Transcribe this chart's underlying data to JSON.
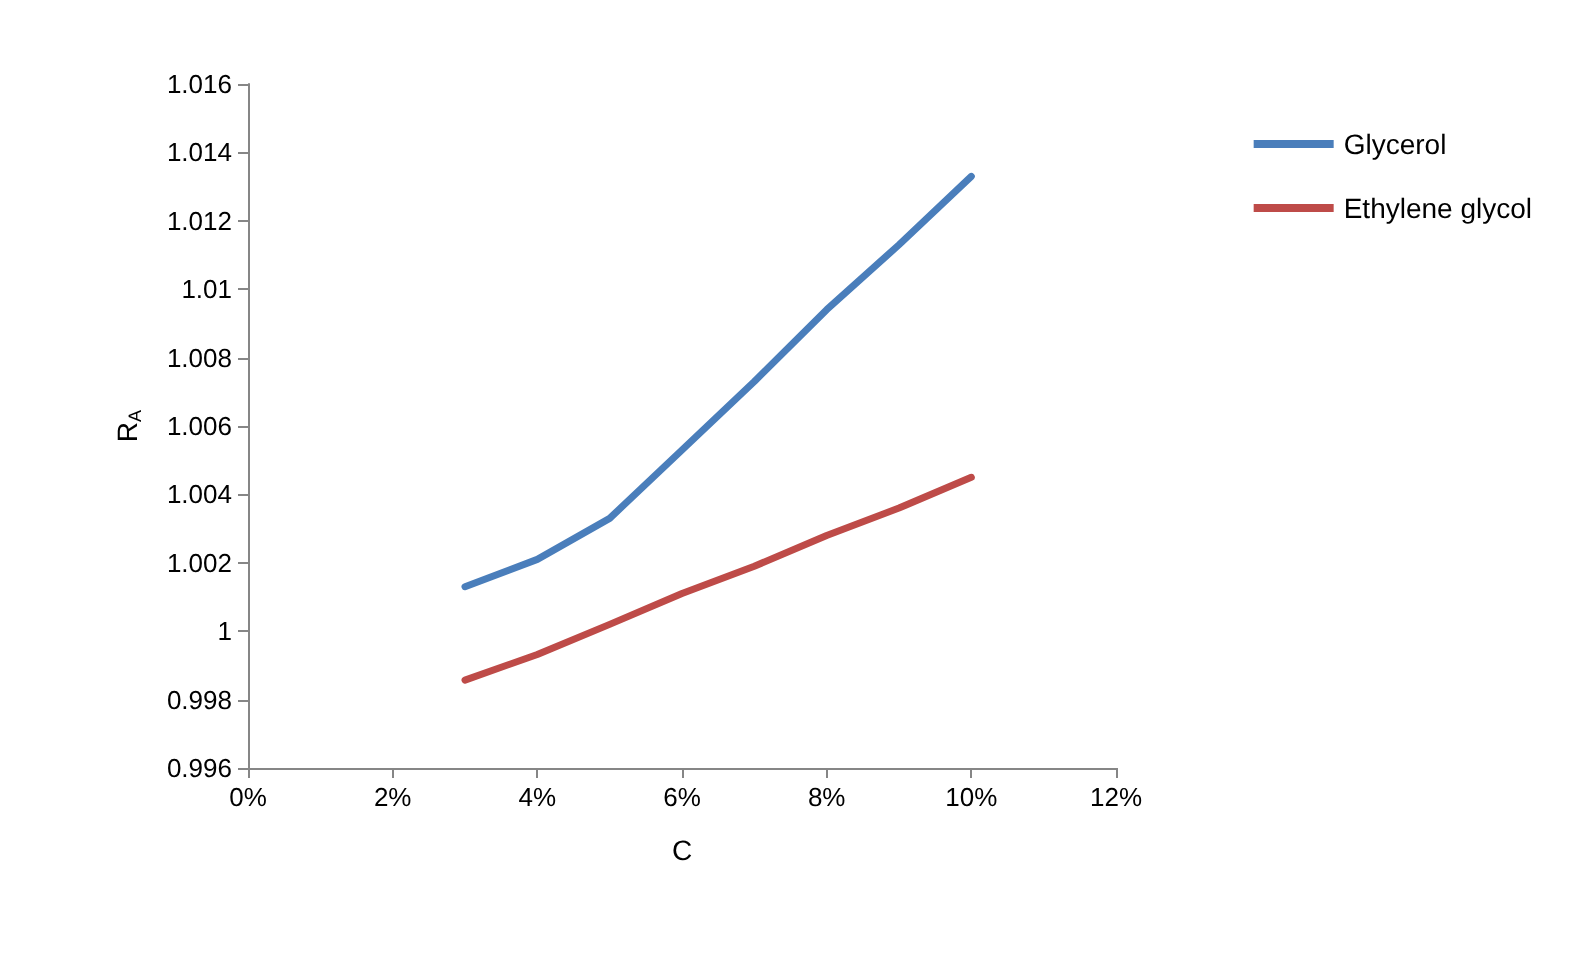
{
  "chart_data": {
    "type": "line",
    "xlabel": "C",
    "ylabel": "R$_{A}$",
    "x": [
      3,
      4,
      5,
      6,
      7,
      8,
      9,
      10
    ],
    "series": [
      {
        "name": "Glycerol",
        "color": "#4a7ebb",
        "values": [
          1.0013,
          1.0021,
          1.0033,
          1.0053,
          1.0073,
          1.0094,
          1.0113,
          1.0133
        ]
      },
      {
        "name": "Ethylene glycol",
        "color": "#be4b48",
        "values": [
          0.99857,
          0.99932,
          1.0002,
          1.0011,
          1.0019,
          1.0028,
          1.0036,
          1.0045
        ]
      }
    ],
    "xlim": [
      0,
      12
    ],
    "xticks": [
      {
        "value": 0,
        "label": "0%"
      },
      {
        "value": 2,
        "label": "2%"
      },
      {
        "value": 4,
        "label": "4%"
      },
      {
        "value": 6,
        "label": "6%"
      },
      {
        "value": 8,
        "label": "8%"
      },
      {
        "value": 10,
        "label": "10%"
      },
      {
        "value": 12,
        "label": "12%"
      }
    ],
    "ylim": [
      0.996,
      1.016
    ],
    "yticks": [
      0.996,
      0.998,
      1,
      1.002,
      1.004,
      1.006,
      1.008,
      1.01,
      1.012,
      1.014,
      1.016
    ],
    "grid": false,
    "legend": "right",
    "marker": "none",
    "line_style": "solid"
  }
}
